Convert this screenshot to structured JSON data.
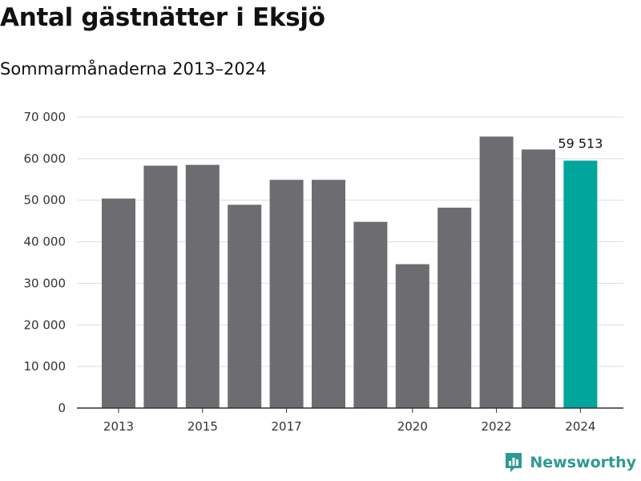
{
  "chart_data": {
    "type": "bar",
    "title": "Antal gästnätter i Eksjö",
    "subtitle": "Sommarmånaderna 2013–2024",
    "categories": [
      2013,
      2014,
      2015,
      2016,
      2017,
      2018,
      2019,
      2020,
      2021,
      2022,
      2023,
      2024
    ],
    "values": [
      50400,
      58300,
      58500,
      48900,
      54900,
      54900,
      44800,
      34600,
      48200,
      65300,
      62200,
      59513
    ],
    "x_tick_labels": [
      "2013",
      "2015",
      "2017",
      "2020",
      "2022",
      "2024"
    ],
    "y_tick_labels": [
      "0",
      "10 000",
      "20 000",
      "30 000",
      "40 000",
      "50 000",
      "60 000",
      "70 000"
    ],
    "ylim": [
      0,
      70000
    ],
    "grid": true,
    "highlight": {
      "category": 2024,
      "label": "59 513"
    },
    "colors": {
      "bar": "#6d6c71",
      "highlight": "#00a59b",
      "grid": "#dddddd",
      "axis": "#333333"
    }
  },
  "brand": {
    "name": "Newsworthy",
    "icon": "newsworthy-logo-icon",
    "color": "#2e9a8f"
  }
}
